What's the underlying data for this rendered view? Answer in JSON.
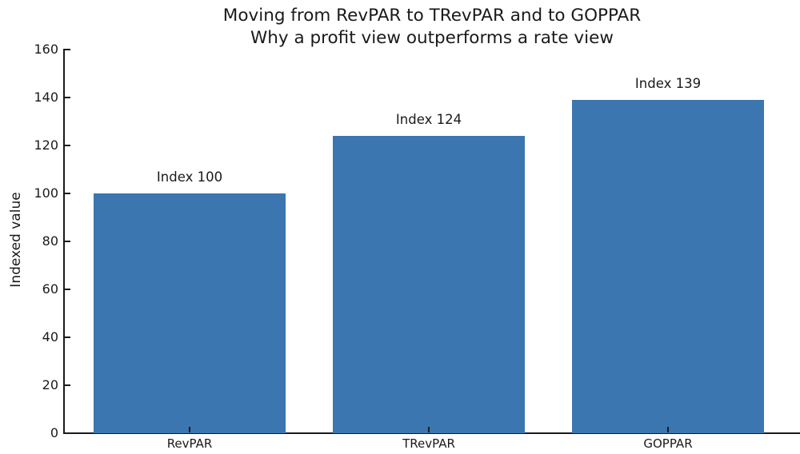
{
  "title": {
    "line1": "Moving from RevPAR to TRevPAR and to GOPPAR",
    "line2": "Why a profit view outperforms a rate view"
  },
  "chart_data": {
    "type": "bar",
    "title": "Moving from RevPAR to TRevPAR and to GOPPAR\nWhy a profit view outperforms a rate view",
    "categories": [
      "RevPAR",
      "TRevPAR",
      "GOPPAR"
    ],
    "values": [
      100,
      124,
      139
    ],
    "bar_labels": [
      "Index 100",
      "Index 124",
      "Index 139"
    ],
    "xlabel": "",
    "ylabel": "Indexed value",
    "ylim": [
      0,
      160
    ],
    "yticks": [
      0,
      20,
      40,
      60,
      80,
      100,
      120,
      140,
      160
    ],
    "grid": false,
    "legend": "none",
    "bar_color": "#3b76b0",
    "axis_color": "#1a1a1a",
    "text_color": "#1a1a1a",
    "background_color": "#ffffff"
  }
}
